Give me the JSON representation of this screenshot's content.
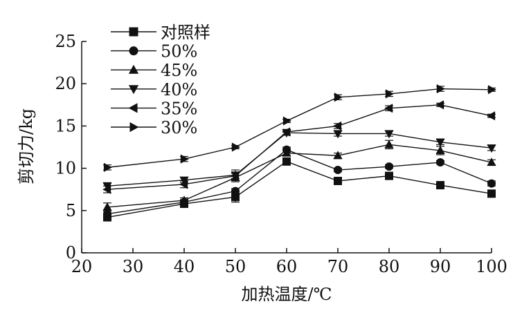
{
  "chart_data": {
    "type": "line",
    "xlabel": "加热温度/℃",
    "ylabel": "剪切力/kg",
    "xlim": [
      20,
      100
    ],
    "ylim": [
      0,
      25
    ],
    "x_ticks": [
      "20",
      "30",
      "40",
      "50",
      "60",
      "70",
      "80",
      "90",
      "100"
    ],
    "y_ticks": [
      "0",
      "5",
      "10",
      "15",
      "20",
      "25"
    ],
    "grid": false,
    "legend_position": "top-left",
    "x": [
      25,
      40,
      50,
      60,
      70,
      80,
      90,
      100
    ],
    "series": [
      {
        "name": "对照样",
        "marker": "square",
        "values": [
          4.2,
          5.8,
          6.6,
          10.8,
          8.5,
          9.1,
          8.0,
          7.0
        ],
        "errors": [
          0.3,
          0.3,
          0.6,
          0.3,
          0.3,
          0.3,
          0.2,
          0.3
        ]
      },
      {
        "name": "50%",
        "marker": "circle",
        "values": [
          4.6,
          6.0,
          7.3,
          12.2,
          9.8,
          10.2,
          10.7,
          8.2
        ],
        "errors": [
          0.3,
          0.3,
          0.3,
          0.3,
          0.2,
          0.2,
          0.2,
          0.3
        ]
      },
      {
        "name": "45%",
        "marker": "triangle-up",
        "values": [
          5.4,
          6.2,
          8.9,
          11.8,
          11.5,
          12.8,
          12.1,
          10.7
        ],
        "errors": [
          0.5,
          0.3,
          0.5,
          0.3,
          0.3,
          0.5,
          0.5,
          0.3
        ]
      },
      {
        "name": "40%",
        "marker": "triangle-down",
        "values": [
          7.9,
          8.6,
          9.2,
          14.2,
          14.1,
          14.1,
          13.1,
          12.4
        ],
        "errors": [
          0.4,
          0.3,
          0.6,
          0.3,
          0.3,
          0.3,
          0.3,
          0.3
        ]
      },
      {
        "name": "35%",
        "marker": "triangle-left",
        "values": [
          7.5,
          8.1,
          9.1,
          14.3,
          15.0,
          17.1,
          17.5,
          16.2
        ],
        "errors": [
          0.4,
          0.4,
          0.3,
          0.3,
          0.3,
          0.3,
          0.2,
          0.2
        ]
      },
      {
        "name": "30%",
        "marker": "triangle-right",
        "values": [
          10.1,
          11.1,
          12.5,
          15.6,
          18.4,
          18.8,
          19.4,
          19.3
        ],
        "errors": [
          0.3,
          0.3,
          0.2,
          0.2,
          0.3,
          0.3,
          0.3,
          0.2
        ]
      }
    ]
  }
}
